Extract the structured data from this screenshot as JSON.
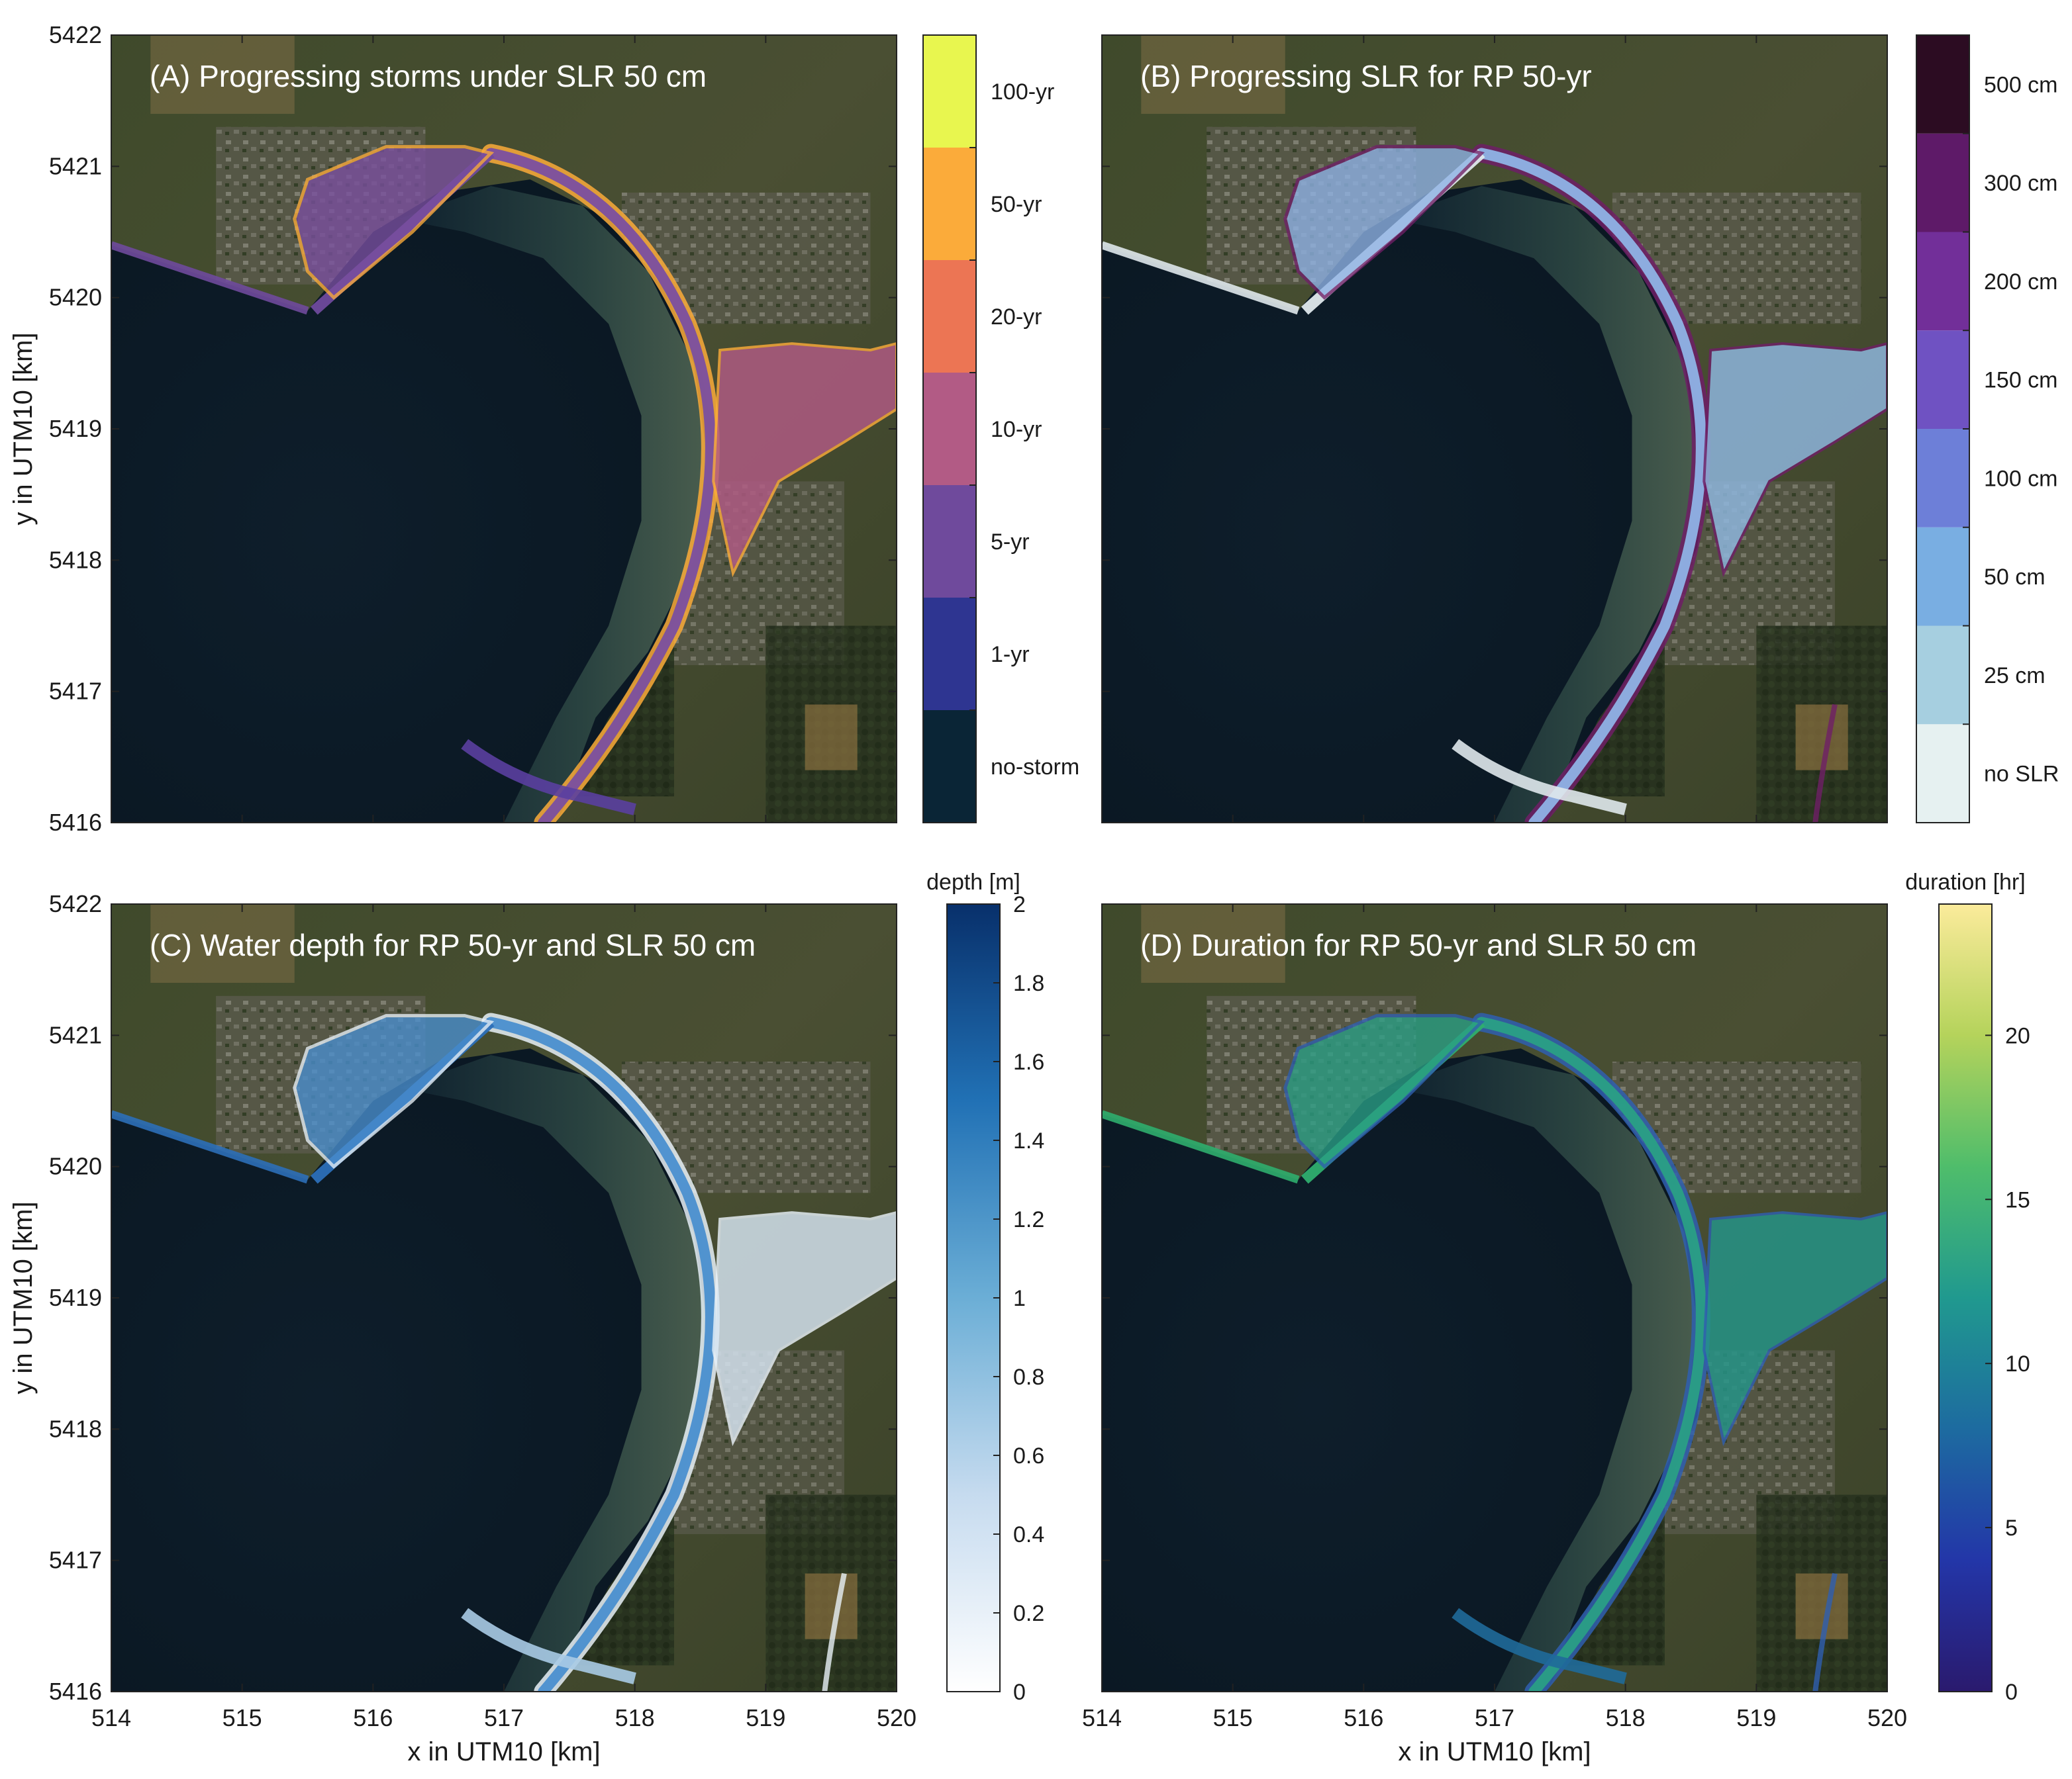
{
  "panels": [
    {
      "id": "A",
      "title": "(A) Progressing storms under SLR 50 cm",
      "colorbar": {
        "type": "discrete",
        "title": "",
        "labels": [
          "no-storm",
          "1-yr",
          "5-yr",
          "10-yr",
          "20-yr",
          "50-yr",
          "100-yr"
        ],
        "colors": [
          "#0a2536",
          "#2e3591",
          "#6f4a9c",
          "#b25b85",
          "#ec7554",
          "#fbab3a",
          "#e8f64f"
        ]
      }
    },
    {
      "id": "B",
      "title": "(B) Progressing SLR for RP 50-yr",
      "colorbar": {
        "type": "discrete",
        "title": "",
        "labels": [
          "no SLR",
          "25 cm",
          "50 cm",
          "100 cm",
          "150 cm",
          "200 cm",
          "300 cm",
          "500 cm"
        ],
        "colors": [
          "#e6f1f1",
          "#a6cfe0",
          "#79aee2",
          "#6d7fd8",
          "#6f52c2",
          "#722f99",
          "#5e1a68",
          "#2c0c22"
        ]
      }
    },
    {
      "id": "C",
      "title": "(C) Water depth for RP 50-yr and SLR 50 cm",
      "colorbar": {
        "type": "continuous",
        "title": "depth [m]",
        "min": 0,
        "max": 2,
        "ticks": [
          "0",
          "0.2",
          "0.4",
          "0.6",
          "0.8",
          "1",
          "1.2",
          "1.4",
          "1.6",
          "1.8",
          "2"
        ],
        "colors": [
          "#ffffff",
          "#c6dbef",
          "#6baed6",
          "#2171b5",
          "#08306b"
        ]
      }
    },
    {
      "id": "D",
      "title": "(D) Duration for RP 50-yr and SLR 50 cm",
      "colorbar": {
        "type": "continuous",
        "title": "duration [hr]",
        "min": 0,
        "max": 24,
        "ticks": [
          "0",
          "5",
          "10",
          "15",
          "20"
        ],
        "tick_values": [
          0,
          5,
          10,
          15,
          20
        ],
        "colors": [
          "#2a1a6e",
          "#2336a8",
          "#1d6ba0",
          "#20998f",
          "#4fbd6b",
          "#b5d35b",
          "#fbeb9b"
        ]
      }
    }
  ],
  "axes": {
    "xlabel": "x in UTM10 [km]",
    "ylabel": "y in UTM10 [km]",
    "xticks": [
      "514",
      "515",
      "516",
      "517",
      "518",
      "519",
      "520"
    ],
    "yticks": [
      "5416",
      "5417",
      "5418",
      "5419",
      "5420",
      "5421",
      "5422"
    ],
    "xlim": [
      514,
      520
    ],
    "ylim": [
      5416,
      5422
    ]
  }
}
